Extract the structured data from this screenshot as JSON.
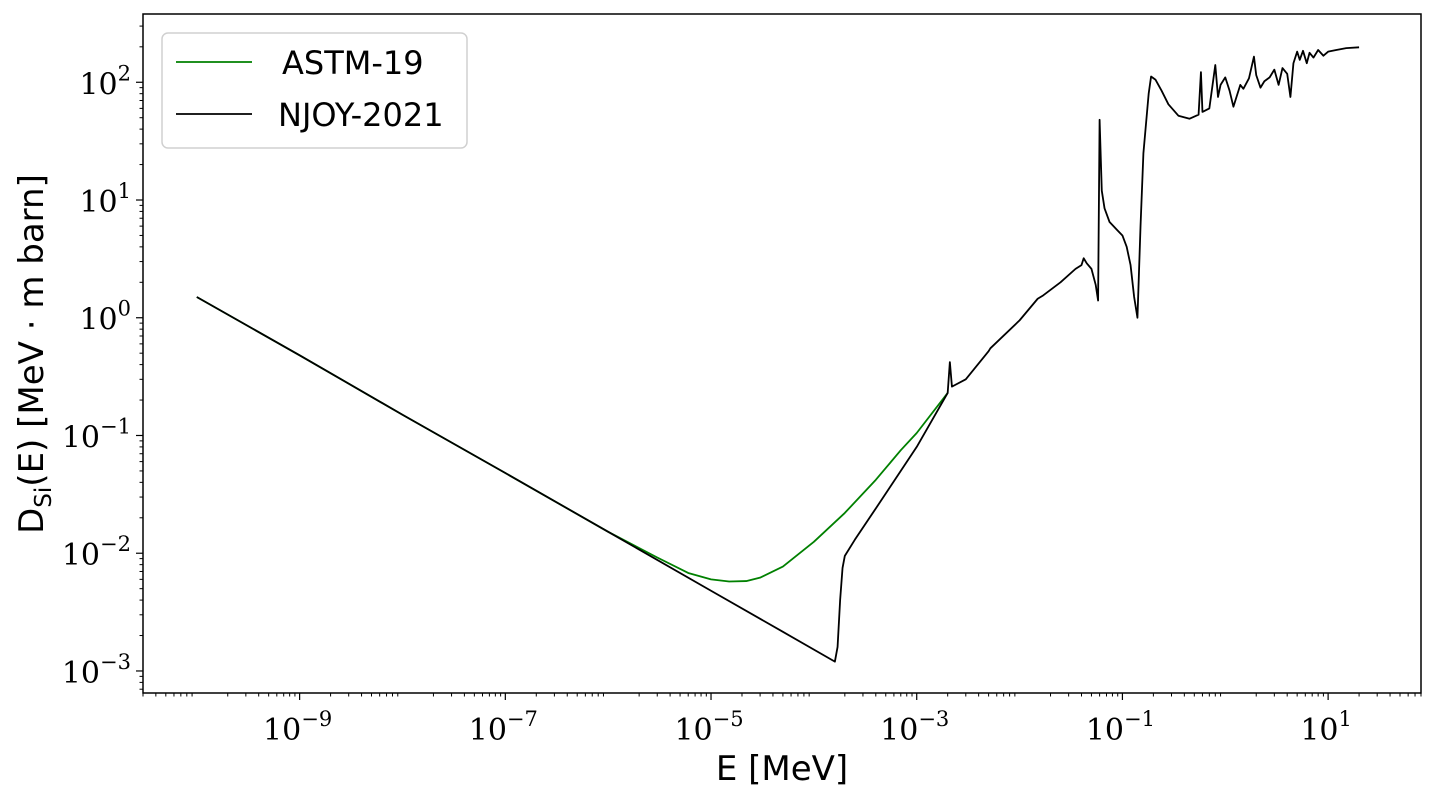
{
  "chart_data": {
    "type": "line",
    "xscale": "log",
    "yscale": "log",
    "xlabel": "E [MeV]",
    "ylabel_main": "D",
    "ylabel_sub": "Si",
    "ylabel_rest": "(E) [MeV · m barn]",
    "xlim": [
      3e-11,
      80
    ],
    "ylim": [
      0.00065,
      380
    ],
    "x_ticks": [
      {
        "value": 1e-09,
        "base": "10",
        "exp": "−9"
      },
      {
        "value": 1e-07,
        "base": "10",
        "exp": "−7"
      },
      {
        "value": 1e-05,
        "base": "10",
        "exp": "−5"
      },
      {
        "value": 0.001,
        "base": "10",
        "exp": "−3"
      },
      {
        "value": 0.1,
        "base": "10",
        "exp": "−1"
      },
      {
        "value": 10,
        "base": "10",
        "exp": "1"
      }
    ],
    "y_ticks": [
      {
        "value": 0.001,
        "base": "10",
        "exp": "−3"
      },
      {
        "value": 0.01,
        "base": "10",
        "exp": "−2"
      },
      {
        "value": 0.1,
        "base": "10",
        "exp": "−1"
      },
      {
        "value": 1,
        "base": "10",
        "exp": "0"
      },
      {
        "value": 10,
        "base": "10",
        "exp": "1"
      },
      {
        "value": 100,
        "base": "10",
        "exp": "2"
      }
    ],
    "legend_position": "top-left",
    "series": [
      {
        "name": "ASTM-19",
        "color": "#008000",
        "points": [
          [
            1e-10,
            1.5
          ],
          [
            1e-09,
            0.48
          ],
          [
            1e-08,
            0.15
          ],
          [
            1e-07,
            0.048
          ],
          [
            1e-06,
            0.0152
          ],
          [
            3e-06,
            0.0092
          ],
          [
            6e-06,
            0.0068
          ],
          [
            1e-05,
            0.006
          ],
          [
            1.5e-05,
            0.00575
          ],
          [
            2.2e-05,
            0.0058
          ],
          [
            3e-05,
            0.0062
          ],
          [
            5e-05,
            0.0077
          ],
          [
            0.0001,
            0.0125
          ],
          [
            0.0002,
            0.022
          ],
          [
            0.0004,
            0.042
          ],
          [
            0.0007,
            0.075
          ],
          [
            0.001,
            0.105
          ],
          [
            0.002,
            0.23
          ]
        ]
      },
      {
        "name": "NJOY-2021",
        "color": "#000000",
        "points": [
          [
            1e-10,
            1.5
          ],
          [
            1e-09,
            0.48
          ],
          [
            1e-08,
            0.15
          ],
          [
            1e-07,
            0.048
          ],
          [
            1e-06,
            0.0152
          ],
          [
            1e-05,
            0.0048
          ],
          [
            5e-05,
            0.00215
          ],
          [
            0.00016,
            0.0012
          ],
          [
            0.00017,
            0.0016
          ],
          [
            0.00018,
            0.004
          ],
          [
            0.00019,
            0.0075
          ],
          [
            0.0002,
            0.0095
          ],
          [
            0.00025,
            0.013
          ],
          [
            0.0004,
            0.024
          ],
          [
            0.0007,
            0.05
          ],
          [
            0.001,
            0.08
          ],
          [
            0.002,
            0.23
          ],
          [
            0.0021,
            0.42
          ],
          [
            0.0022,
            0.26
          ],
          [
            0.003,
            0.3
          ],
          [
            0.005,
            0.52
          ],
          [
            0.0052,
            0.55
          ],
          [
            0.01,
            0.95
          ],
          [
            0.015,
            1.45
          ],
          [
            0.017,
            1.55
          ],
          [
            0.025,
            2.0
          ],
          [
            0.035,
            2.6
          ],
          [
            0.04,
            2.8
          ],
          [
            0.042,
            3.2
          ],
          [
            0.045,
            2.9
          ],
          [
            0.05,
            2.6
          ],
          [
            0.055,
            1.9
          ],
          [
            0.058,
            1.4
          ],
          [
            0.06,
            48
          ],
          [
            0.063,
            12
          ],
          [
            0.067,
            8.5
          ],
          [
            0.075,
            6.5
          ],
          [
            0.09,
            5.5
          ],
          [
            0.1,
            5.0
          ],
          [
            0.11,
            4.0
          ],
          [
            0.12,
            2.8
          ],
          [
            0.13,
            1.5
          ],
          [
            0.14,
            1.0
          ],
          [
            0.15,
            6
          ],
          [
            0.16,
            25
          ],
          [
            0.18,
            80
          ],
          [
            0.19,
            112
          ],
          [
            0.21,
            105
          ],
          [
            0.24,
            85
          ],
          [
            0.28,
            65
          ],
          [
            0.35,
            52
          ],
          [
            0.45,
            49
          ],
          [
            0.55,
            53
          ],
          [
            0.58,
            122
          ],
          [
            0.6,
            56
          ],
          [
            0.7,
            60
          ],
          [
            0.8,
            140
          ],
          [
            0.85,
            75
          ],
          [
            0.9,
            95
          ],
          [
            1.0,
            110
          ],
          [
            1.1,
            85
          ],
          [
            1.2,
            62
          ],
          [
            1.4,
            95
          ],
          [
            1.5,
            88
          ],
          [
            1.7,
            108
          ],
          [
            1.9,
            165
          ],
          [
            2.0,
            115
          ],
          [
            2.2,
            90
          ],
          [
            2.4,
            102
          ],
          [
            2.7,
            110
          ],
          [
            3.0,
            128
          ],
          [
            3.3,
            95
          ],
          [
            3.6,
            132
          ],
          [
            4.0,
            118
          ],
          [
            4.3,
            75
          ],
          [
            4.6,
            145
          ],
          [
            5.0,
            182
          ],
          [
            5.3,
            155
          ],
          [
            5.7,
            185
          ],
          [
            6.2,
            145
          ],
          [
            6.6,
            178
          ],
          [
            7.2,
            162
          ],
          [
            8.0,
            188
          ],
          [
            9.0,
            168
          ],
          [
            10,
            182
          ],
          [
            12,
            188
          ],
          [
            15,
            195
          ],
          [
            20,
            198
          ]
        ]
      }
    ]
  }
}
